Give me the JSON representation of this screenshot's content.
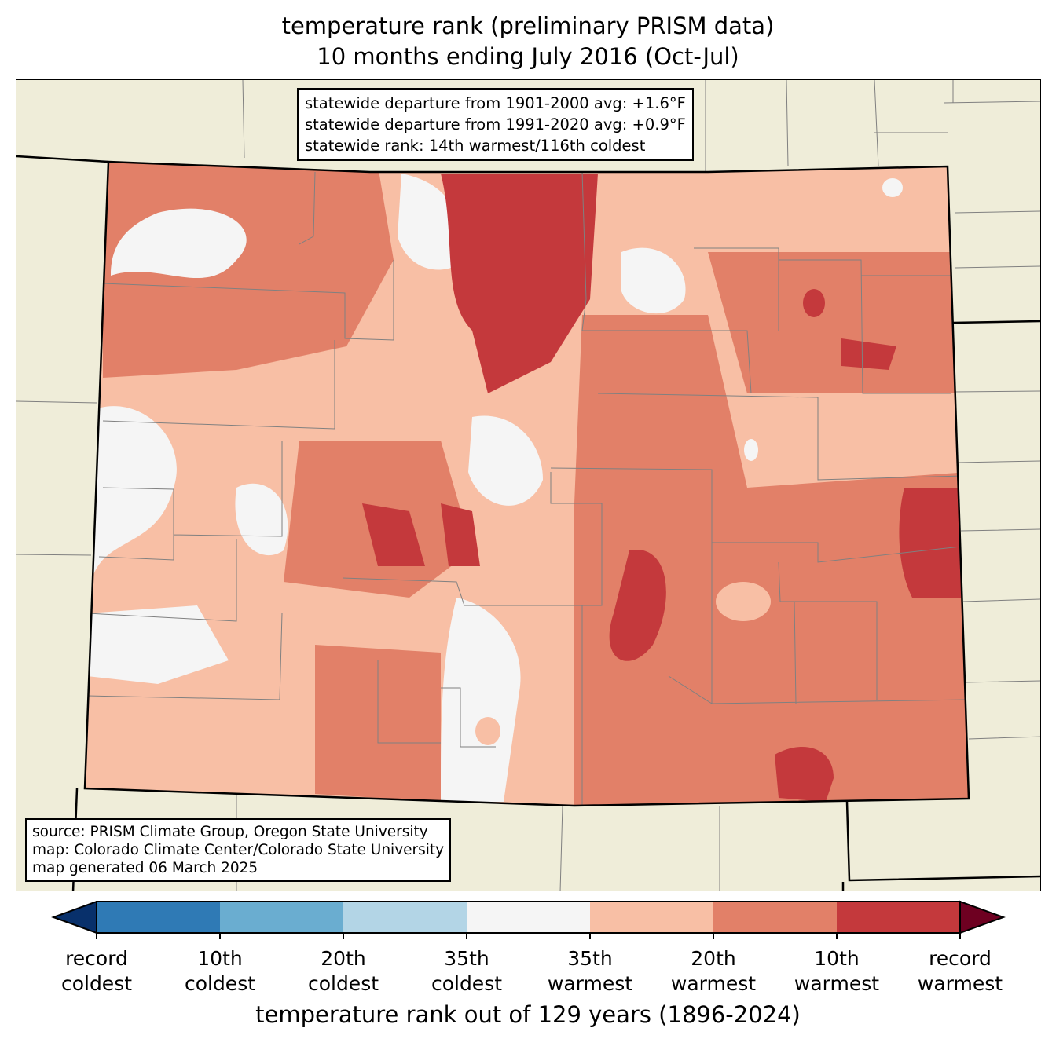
{
  "title": {
    "line1": "temperature rank (preliminary PRISM data)",
    "line2": "10 months ending July 2016 (Oct-Jul)"
  },
  "stats_box": {
    "line1": "statewide departure from 1901-2000 avg: +1.6°F",
    "line2": "statewide departure from 1991-2020 avg: +0.9°F",
    "line3": "statewide rank: 14th warmest/116th coldest"
  },
  "source_box": {
    "line1": "source: PRISM Climate Group, Oregon State University",
    "line2": "map: Colorado Climate Center/Colorado State University",
    "line3": "map generated 06 March 2025"
  },
  "colorbar": {
    "label": "temperature rank out of 129 years (1896-2024)",
    "under_color": "#08306b",
    "over_color": "#6e0021",
    "colors": [
      "#2f7ab5",
      "#6aadd0",
      "#b3d5e6",
      "#f5f5f5",
      "#f8bfa5",
      "#e28068",
      "#c4393c"
    ],
    "ticks": [
      {
        "l1": "record",
        "l2": "coldest"
      },
      {
        "l1": "10th",
        "l2": "coldest"
      },
      {
        "l1": "20th",
        "l2": "coldest"
      },
      {
        "l1": "35th",
        "l2": "coldest"
      },
      {
        "l1": "35th",
        "l2": "warmest"
      },
      {
        "l1": "20th",
        "l2": "warmest"
      },
      {
        "l1": "10th",
        "l2": "warmest"
      },
      {
        "l1": "record",
        "l2": "warmest"
      }
    ]
  },
  "map_colors": {
    "land": "#efedd9",
    "border": "#000000",
    "county": "#808080"
  }
}
